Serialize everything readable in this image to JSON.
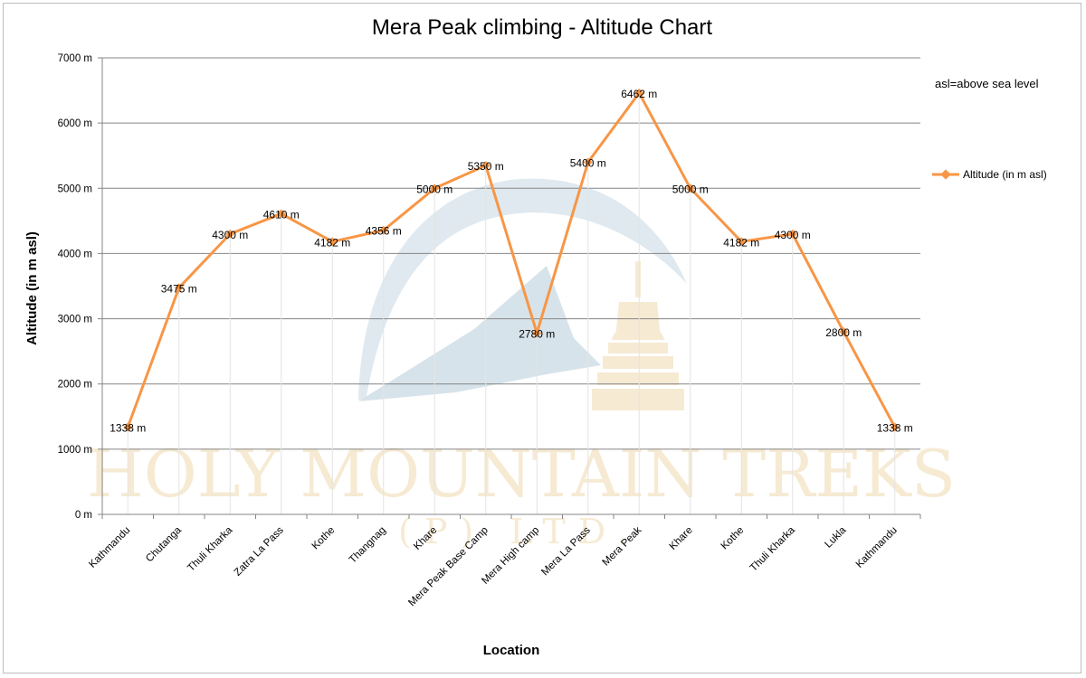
{
  "chart_data": {
    "type": "line",
    "title": "Mera Peak climbing - Altitude Chart",
    "xlabel": "Location",
    "ylabel": "Altitude (in m asl)",
    "ylim": [
      0,
      7000
    ],
    "y_ticks": [
      0,
      1000,
      2000,
      3000,
      4000,
      5000,
      6000,
      7000
    ],
    "y_tick_labels": [
      "0 m",
      "1000 m",
      "2000 m",
      "3000 m",
      "4000 m",
      "5000 m",
      "6000 m",
      "7000 m"
    ],
    "grid": true,
    "legend_position": "right",
    "categories": [
      "Kathmandu",
      "Chutanga",
      "Thuli Kharka",
      "Zatra La Pass",
      "Kothe",
      "Thangnag",
      "Khare",
      "Mera Peak Base Camp",
      "Mera High camp",
      "Mera La Pass",
      "Mera Peak",
      "Khare",
      "Kothe",
      "Thuli Kharka",
      "Lukla",
      "Kathmandu"
    ],
    "series": [
      {
        "name": "Altitude (in  m asl)",
        "color": "#f79646",
        "values": [
          1338,
          3475,
          4300,
          4610,
          4182,
          4356,
          5000,
          5350,
          2780,
          5400,
          6462,
          5000,
          4182,
          4300,
          2800,
          1338
        ],
        "data_labels": [
          "1338 m",
          "3475 m",
          "4300 m",
          "4610 m",
          "4182 m",
          "4356 m",
          "5000 m",
          "5350 m",
          "2780 m",
          "5400 m",
          "6462 m",
          "5000 m",
          "4182 m",
          "4300 m",
          "2800 m",
          "1338 m"
        ]
      }
    ],
    "annotation": "asl=above sea level"
  },
  "watermark": {
    "line1": "HOLY MOUNTAIN TREKS",
    "line2": "(P) LTD."
  }
}
